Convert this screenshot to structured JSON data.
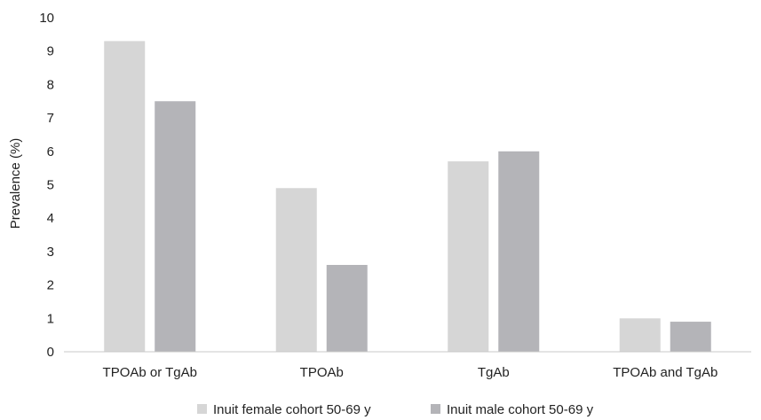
{
  "chart_data": {
    "type": "bar",
    "title": "",
    "xlabel": "",
    "ylabel": "Prevalence (%)",
    "ylim": [
      0,
      10
    ],
    "yticks": [
      0,
      1,
      2,
      3,
      4,
      5,
      6,
      7,
      8,
      9,
      10
    ],
    "grid": false,
    "legend_position": "bottom",
    "categories": [
      "TPOAb or TgAb",
      "TPOAb",
      "TgAb",
      "TPOAb and TgAb"
    ],
    "series": [
      {
        "name": "Inuit female cohort 50-69 y",
        "color": "#d6d6d6",
        "values": [
          9.3,
          4.9,
          5.7,
          1.0
        ]
      },
      {
        "name": "Inuit male cohort 50-69 y",
        "color": "#b4b4b8",
        "values": [
          7.5,
          2.6,
          6.0,
          0.9
        ]
      }
    ]
  }
}
